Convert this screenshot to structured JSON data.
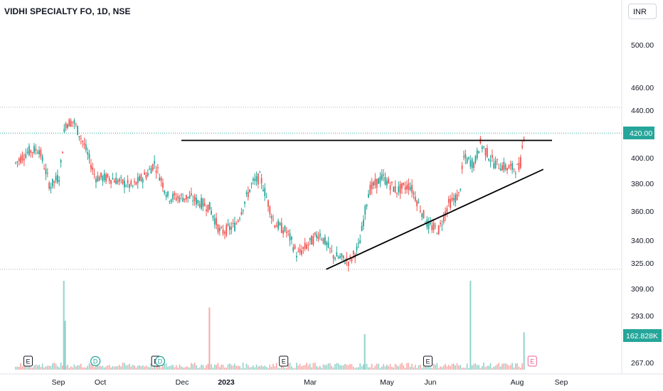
{
  "header": {
    "symbol_title": "VIDHI SPECIALTY FO, 1D, NSE",
    "currency": "INR"
  },
  "colors": {
    "up": "#26a69a",
    "down": "#ef5350",
    "up_volume": "#8fd3cb",
    "down_volume": "#f7a9a7",
    "trendline": "#000000",
    "last_price_bg": "#26a69a",
    "earnings_marker": "#131722",
    "dividend_marker": "#26a69a",
    "upcoming_earnings_marker": "#f06292"
  },
  "chart_data": {
    "type": "candlestick",
    "title": "VIDHI SPECIALTY FO, 1D, NSE",
    "y_axis_ticks": [
      "500.00",
      "460.00",
      "440.00",
      "420.00",
      "400.00",
      "380.00",
      "360.00",
      "340.00",
      "325.00",
      "309.00",
      "293.00",
      "267.00"
    ],
    "y_scale": "log",
    "x_axis_ticks": [
      "Sep",
      "Oct",
      "Dec",
      "2023",
      "Mar",
      "May",
      "Jun",
      "Aug",
      "Sep"
    ],
    "last_price": "420.00",
    "last_volume": "162.828K",
    "resistance_level": 414,
    "support_trendline": [
      {
        "date": "2023-03-15",
        "price": 321
      },
      {
        "date": "2023-08-20",
        "price": 391
      }
    ],
    "price_path": [
      {
        "date": "2022-08-01",
        "price": 396
      },
      {
        "date": "2022-08-10",
        "price": 405
      },
      {
        "date": "2022-08-18",
        "price": 407
      },
      {
        "date": "2022-08-26",
        "price": 378
      },
      {
        "date": "2022-09-02",
        "price": 386
      },
      {
        "date": "2022-09-06",
        "price": 428
      },
      {
        "date": "2022-09-12",
        "price": 430
      },
      {
        "date": "2022-09-20",
        "price": 410
      },
      {
        "date": "2022-09-28",
        "price": 385
      },
      {
        "date": "2022-10-10",
        "price": 384
      },
      {
        "date": "2022-10-25",
        "price": 378
      },
      {
        "date": "2022-11-05",
        "price": 388
      },
      {
        "date": "2022-11-10",
        "price": 396
      },
      {
        "date": "2022-11-20",
        "price": 370
      },
      {
        "date": "2022-12-05",
        "price": 370
      },
      {
        "date": "2022-12-20",
        "price": 363
      },
      {
        "date": "2022-12-28",
        "price": 345
      },
      {
        "date": "2023-01-08",
        "price": 350
      },
      {
        "date": "2023-01-20",
        "price": 380
      },
      {
        "date": "2023-01-26",
        "price": 385
      },
      {
        "date": "2023-02-05",
        "price": 352
      },
      {
        "date": "2023-02-15",
        "price": 345
      },
      {
        "date": "2023-02-22",
        "price": 330
      },
      {
        "date": "2023-03-05",
        "price": 340
      },
      {
        "date": "2023-03-10",
        "price": 345
      },
      {
        "date": "2023-03-20",
        "price": 330
      },
      {
        "date": "2023-04-01",
        "price": 326
      },
      {
        "date": "2023-04-08",
        "price": 336
      },
      {
        "date": "2023-04-15",
        "price": 375
      },
      {
        "date": "2023-04-25",
        "price": 385
      },
      {
        "date": "2023-05-05",
        "price": 375
      },
      {
        "date": "2023-05-15",
        "price": 379
      },
      {
        "date": "2023-05-28",
        "price": 350
      },
      {
        "date": "2023-06-05",
        "price": 347
      },
      {
        "date": "2023-06-12",
        "price": 365
      },
      {
        "date": "2023-06-20",
        "price": 372
      },
      {
        "date": "2023-06-23",
        "price": 400
      },
      {
        "date": "2023-07-01",
        "price": 395
      },
      {
        "date": "2023-07-05",
        "price": 412
      },
      {
        "date": "2023-07-15",
        "price": 396
      },
      {
        "date": "2023-07-25",
        "price": 392
      },
      {
        "date": "2023-08-03",
        "price": 392
      },
      {
        "date": "2023-08-06",
        "price": 420
      }
    ],
    "volume_spikes": [
      {
        "date": "2022-09-05",
        "up": true,
        "level": 1.0
      },
      {
        "date": "2022-09-06",
        "up": true,
        "level": 0.55
      },
      {
        "date": "2022-12-20",
        "up": false,
        "level": 0.7
      },
      {
        "date": "2023-04-12",
        "up": true,
        "level": 0.4
      },
      {
        "date": "2023-06-28",
        "up": true,
        "level": 1.0
      },
      {
        "date": "2023-08-06",
        "up": true,
        "level": 0.42
      }
    ],
    "events": [
      {
        "type": "E",
        "date": "2022-08-10"
      },
      {
        "type": "D",
        "date": "2022-09-28"
      },
      {
        "type": "E",
        "date": "2022-11-11"
      },
      {
        "type": "D",
        "date": "2022-11-14"
      },
      {
        "type": "E",
        "date": "2023-02-12"
      },
      {
        "type": "E",
        "date": "2023-05-28"
      },
      {
        "type": "E",
        "date": "2023-08-12",
        "upcoming": true
      }
    ]
  }
}
